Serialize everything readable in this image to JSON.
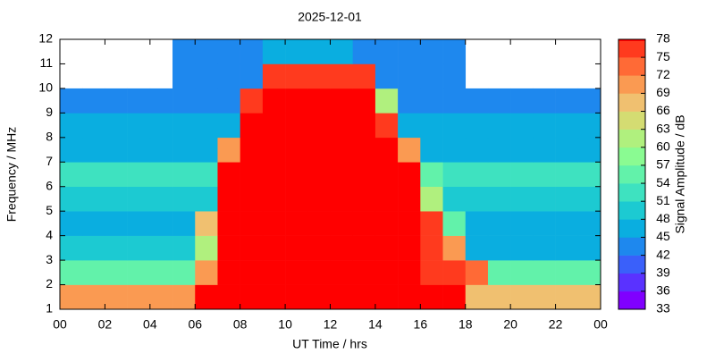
{
  "chart_data": {
    "type": "heatmap",
    "title": "2025-12-01",
    "xlabel": "UT Time / hrs",
    "ylabel": "Frequency / MHz",
    "colorbar_label": "Signal Amplitude / dB",
    "xlim": [
      0,
      24
    ],
    "xticks": [
      {
        "value": 0,
        "label": "00"
      },
      {
        "value": 2,
        "label": "02"
      },
      {
        "value": 4,
        "label": "04"
      },
      {
        "value": 6,
        "label": "06"
      },
      {
        "value": 8,
        "label": "08"
      },
      10,
      12,
      14,
      16,
      18,
      20,
      22,
      {
        "value": 24,
        "label": "00"
      }
    ],
    "ylim": [
      1,
      12
    ],
    "yticks": [
      1,
      2,
      3,
      4,
      5,
      6,
      7,
      8,
      9,
      10,
      11,
      12
    ],
    "x": [
      0,
      1,
      2,
      3,
      4,
      5,
      6,
      7,
      8,
      9,
      10,
      11,
      12,
      13,
      14,
      15,
      16,
      17,
      18,
      19,
      20,
      21,
      22,
      23,
      24
    ],
    "y": [
      1,
      2,
      3,
      4,
      5,
      6,
      7,
      8,
      9,
      10,
      11,
      12
    ],
    "z": [
      [
        70,
        70,
        70,
        70,
        70,
        70,
        78,
        78,
        78,
        78,
        78,
        78,
        78,
        78,
        78,
        78,
        78,
        78,
        68,
        68,
        68,
        68,
        68,
        68
      ],
      [
        55,
        55,
        55,
        55,
        55,
        55,
        70,
        78,
        78,
        78,
        78,
        78,
        78,
        78,
        78,
        78,
        75,
        75,
        72,
        55,
        55,
        55,
        55,
        55
      ],
      [
        48,
        48,
        48,
        48,
        48,
        48,
        60,
        78,
        78,
        78,
        78,
        78,
        78,
        78,
        78,
        78,
        76,
        70,
        46,
        46,
        46,
        46,
        46,
        46
      ],
      [
        47,
        47,
        47,
        47,
        47,
        47,
        66,
        78,
        78,
        78,
        78,
        78,
        78,
        78,
        78,
        78,
        75,
        55,
        47,
        47,
        47,
        47,
        47,
        47
      ],
      [
        48,
        48,
        48,
        48,
        48,
        48,
        50,
        78,
        78,
        78,
        78,
        78,
        78,
        78,
        78,
        78,
        60,
        48,
        48,
        48,
        48,
        48,
        48,
        48
      ],
      [
        52,
        52,
        52,
        52,
        52,
        52,
        52,
        78,
        78,
        78,
        78,
        78,
        78,
        78,
        78,
        78,
        55,
        52,
        52,
        52,
        52,
        52,
        52,
        52
      ],
      [
        47,
        47,
        47,
        47,
        47,
        47,
        47,
        70,
        78,
        78,
        78,
        78,
        78,
        78,
        78,
        70,
        47,
        47,
        47,
        47,
        47,
        47,
        47,
        47
      ],
      [
        45,
        45,
        45,
        45,
        45,
        45,
        45,
        45,
        78,
        78,
        78,
        78,
        78,
        78,
        75,
        45,
        45,
        45,
        45,
        45,
        45,
        45,
        45,
        45
      ],
      [
        42,
        42,
        42,
        42,
        42,
        42,
        42,
        42,
        76,
        78,
        78,
        78,
        78,
        78,
        60,
        42,
        42,
        42,
        42,
        42,
        42,
        42,
        42,
        42
      ],
      [
        null,
        null,
        null,
        null,
        null,
        43,
        43,
        43,
        43,
        77,
        77,
        77,
        77,
        77,
        43,
        43,
        43,
        43,
        null,
        null,
        null,
        null,
        null,
        null
      ],
      [
        null,
        null,
        null,
        null,
        null,
        42,
        42,
        42,
        42,
        45,
        45,
        45,
        45,
        42,
        42,
        42,
        42,
        42,
        null,
        null,
        null,
        null,
        null,
        null
      ]
    ],
    "clim": [
      33,
      78
    ],
    "cticks": [
      33,
      36,
      39,
      42,
      45,
      48,
      51,
      54,
      57,
      60,
      63,
      66,
      69,
      72,
      75,
      78
    ],
    "colors": [
      "#8000ff",
      "#5a32ff",
      "#3a60fa",
      "#1e88ee",
      "#0aaee0",
      "#1ccad2",
      "#3ee2c0",
      "#62f2aa",
      "#8afb92",
      "#b0f07e",
      "#d4dc72",
      "#f0c070",
      "#fa9a52",
      "#ff6a36",
      "#ff3a1e",
      "#ff0000"
    ]
  }
}
